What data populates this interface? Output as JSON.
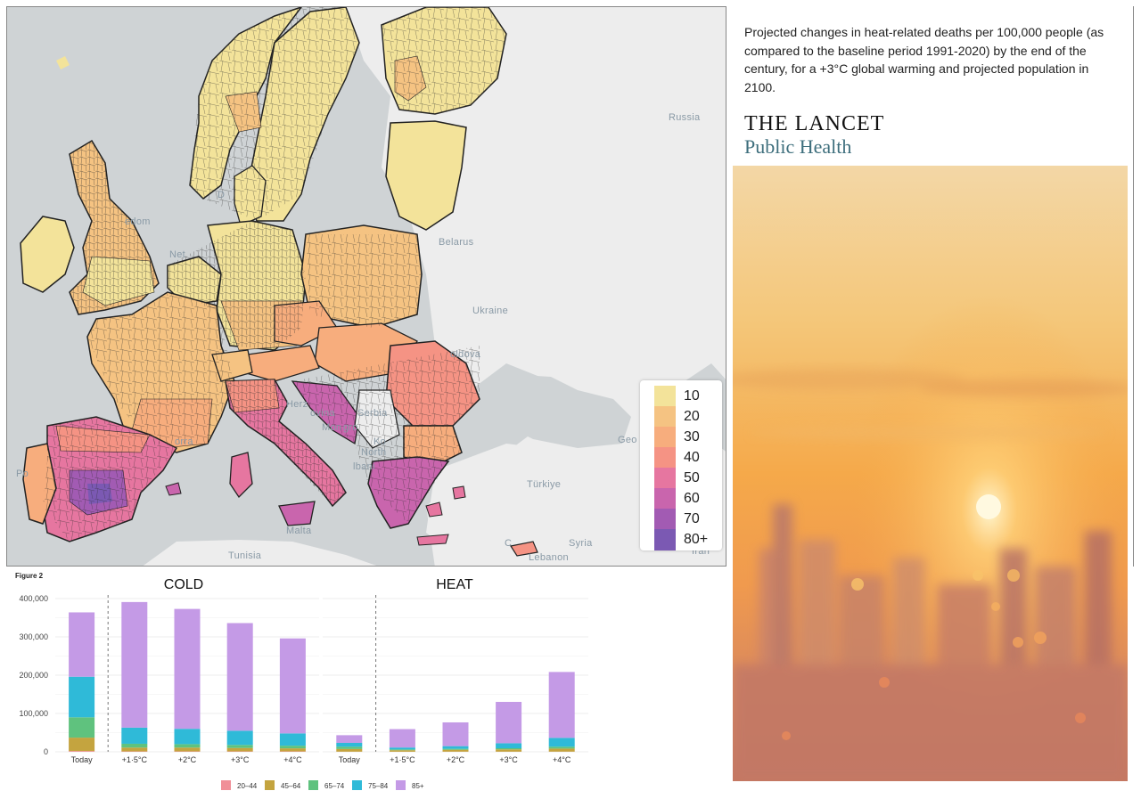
{
  "caption": "Projected changes in heat-related deaths per 100,000 people (as compared to the baseline period 1991-2020) by the end of the century, for a +3°C global warming and projected population in 2100.",
  "journal": {
    "title": "THE LANCET",
    "subtitle": "Public Health"
  },
  "map": {
    "labels": [
      {
        "id": "russia",
        "text": "Russia"
      },
      {
        "id": "belarus",
        "text": "Belarus"
      },
      {
        "id": "ukraine",
        "text": "Ukraine"
      },
      {
        "id": "moldova",
        "text": "oldova"
      },
      {
        "id": "serbia",
        "text": "Serbia"
      },
      {
        "id": "herz",
        "text": "Herz"
      },
      {
        "id": "ovina",
        "text": "ovina"
      },
      {
        "id": "mont",
        "text": "Mon"
      },
      {
        "id": "gro",
        "text": "gro"
      },
      {
        "id": "ko",
        "text": "Ko"
      },
      {
        "id": "north",
        "text": "North"
      },
      {
        "id": "albani",
        "text": "lbani"
      },
      {
        "id": "turkiye",
        "text": "Türkiye"
      },
      {
        "id": "syria",
        "text": "Syria"
      },
      {
        "id": "lebanon",
        "text": "Lebanon"
      },
      {
        "id": "iran",
        "text": "Iran"
      },
      {
        "id": "tunisia",
        "text": "Tunisia"
      },
      {
        "id": "malta",
        "text": "Malta"
      },
      {
        "id": "orra",
        "text": "orra"
      },
      {
        "id": "geo",
        "text": "Geo"
      },
      {
        "id": "kingdom",
        "text": "edom"
      },
      {
        "id": "net",
        "text": "Net"
      },
      {
        "id": "d",
        "text": "D"
      },
      {
        "id": "po",
        "text": "Po"
      },
      {
        "id": "c",
        "text": "C"
      }
    ],
    "legend": [
      {
        "label": "10",
        "color": "#f3e39a"
      },
      {
        "label": "20",
        "color": "#f5c382"
      },
      {
        "label": "30",
        "color": "#f7ad7d"
      },
      {
        "label": "40",
        "color": "#f59384"
      },
      {
        "label": "50",
        "color": "#e676a0"
      },
      {
        "label": "60",
        "color": "#c965ad"
      },
      {
        "label": "70",
        "color": "#a25bb3"
      },
      {
        "label": "80+",
        "color": "#7b59b3"
      }
    ]
  },
  "chart_data": {
    "type": "bar",
    "stacked": true,
    "figure_label": "Figure 2",
    "panels": [
      {
        "title": "COLD",
        "categories": [
          "Today",
          "+1·5°C",
          "+2°C",
          "+3°C",
          "+4°C"
        ]
      },
      {
        "title": "HEAT",
        "categories": [
          "Today",
          "+1·5°C",
          "+2°C",
          "+3°C",
          "+4°C"
        ]
      }
    ],
    "series": [
      {
        "name": "20–44",
        "color": "#f08f98",
        "cold": [
          2000,
          1000,
          1000,
          1000,
          1000
        ],
        "heat": [
          300,
          200,
          300,
          300,
          400
        ]
      },
      {
        "name": "45–64",
        "color": "#c4a43f",
        "cold": [
          35000,
          10000,
          10000,
          9000,
          8000
        ],
        "heat": [
          7000,
          4000,
          5000,
          6000,
          8000
        ]
      },
      {
        "name": "65–74",
        "color": "#5fc27e",
        "cold": [
          53000,
          10000,
          9000,
          8000,
          7000
        ],
        "heat": [
          6000,
          2000,
          2500,
          3000,
          5000
        ]
      },
      {
        "name": "75–84",
        "color": "#2fbad8",
        "cold": [
          106000,
          42000,
          40000,
          37000,
          32000
        ],
        "heat": [
          10000,
          5000,
          7000,
          13000,
          23000
        ]
      },
      {
        "name": "85+",
        "color": "#c49ae6",
        "cold": [
          168000,
          328000,
          313000,
          281000,
          248000
        ],
        "heat": [
          20000,
          48000,
          62000,
          108000,
          172000
        ]
      }
    ],
    "y_ticks": [
      {
        "value": 0,
        "label": "0"
      },
      {
        "value": 100000,
        "label": "100,000"
      },
      {
        "value": 200000,
        "label": "200,000"
      },
      {
        "value": 300000,
        "label": "300,000"
      },
      {
        "value": 400000,
        "label": "400,000"
      }
    ],
    "ylim": [
      0,
      400000
    ],
    "legend_position": "bottom"
  }
}
